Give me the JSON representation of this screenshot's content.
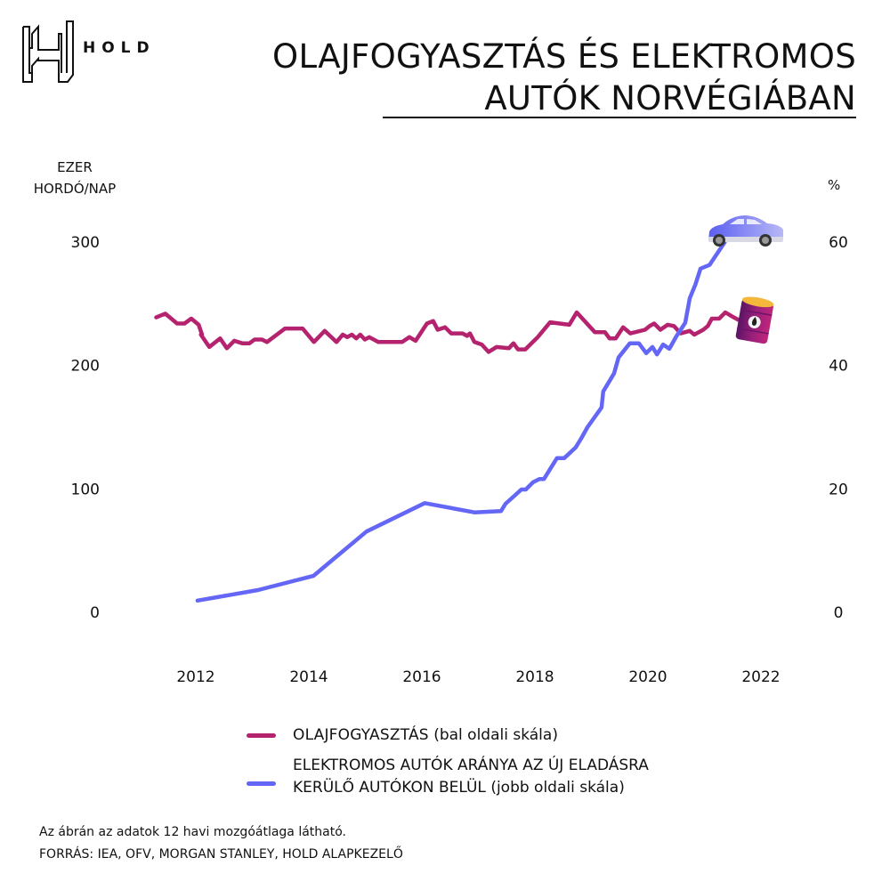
{
  "brand": {
    "name": "HOLD",
    "logo_icon": "hold-h-logo-icon"
  },
  "header": {
    "title_line1": "OLAJFOGYASZTÁS ÉS ELEKTROMOS",
    "title_line2": "AUTÓK NORVÉGIÁBAN"
  },
  "axes": {
    "left_unit_line1": "EZER",
    "left_unit_line2": "HORDÓ/NAP",
    "right_unit": "%"
  },
  "legend": {
    "oil_label": "OLAJFOGYASZTÁS",
    "oil_note": "(bal oldali skála)",
    "ev_label_line1": "ELEKTROMOS AUTÓK ARÁNYA AZ ÚJ ELADÁSRA",
    "ev_label_line2": "KERÜLŐ AUTÓKON BELÜL",
    "ev_note": "(jobb oldali skála)"
  },
  "footer": {
    "note": "Az ábrán az adatok 12 havi mozgóátlaga látható.",
    "source": "FORRÁS: IEA, OFV, MORGAN STANLEY, HOLD ALAPKEZELŐ"
  },
  "colors": {
    "oil": "#b5236f",
    "ev": "#6466f5",
    "text": "#111111"
  },
  "icons": {
    "ev_end_marker": "car-icon",
    "oil_end_marker": "oil-barrel-icon"
  },
  "chart_data": {
    "type": "line",
    "title": "OLAJFOGYASZTÁS ÉS ELEKTROMOS AUTÓK NORVÉGIÁBAN",
    "xlabel": "",
    "ylabel_left": "EZER HORDÓ/NAP",
    "ylabel_right": "%",
    "xlim": [
      2011.1,
      2022.6
    ],
    "ylim_left": [
      0,
      300
    ],
    "ylim_right": [
      0,
      60
    ],
    "xticks": [
      2012,
      2014,
      2016,
      2018,
      2020,
      2022
    ],
    "yticks_left": [
      0,
      100,
      200,
      300
    ],
    "yticks_right": [
      0,
      20,
      40,
      60
    ],
    "grid": false,
    "legend_position": "bottom",
    "series": [
      {
        "name": "OLAJFOGYASZTÁS (bal oldali skála)",
        "axis": "left",
        "color": "#b5236f",
        "x": [
          2011.3,
          2011.46,
          2011.67,
          2011.8,
          2011.92,
          2012.05,
          2012.11,
          2012.09,
          2012.24,
          2012.43,
          2012.55,
          2012.68,
          2012.82,
          2012.95,
          2013.04,
          2013.17,
          2013.26,
          2013.58,
          2013.73,
          2013.89,
          2014.09,
          2014.28,
          2014.49,
          2014.6,
          2014.68,
          2014.76,
          2014.84,
          2014.91,
          2014.99,
          2015.07,
          2015.23,
          2015.65,
          2015.78,
          2015.89,
          2016.09,
          2016.2,
          2016.28,
          2016.41,
          2016.52,
          2016.72,
          2016.8,
          2016.85,
          2016.93,
          2017.06,
          2017.12,
          2017.18,
          2017.32,
          2017.54,
          2017.62,
          2017.7,
          2017.83,
          2018.05,
          2018.27,
          2018.61,
          2018.74,
          2019.06,
          2019.24,
          2019.32,
          2019.43,
          2019.56,
          2019.69,
          2019.95,
          2020.03,
          2020.11,
          2020.22,
          2020.35,
          2020.46,
          2020.58,
          2020.74,
          2020.82,
          2020.98,
          2021.06,
          2021.13,
          2021.26,
          2021.37,
          2021.48,
          2021.6
        ],
        "values": [
          239,
          242,
          234,
          234,
          238,
          233,
          225,
          225,
          215,
          222,
          214,
          220,
          218,
          218,
          221,
          221,
          219,
          230,
          230,
          230,
          219,
          228,
          219,
          225,
          223,
          225,
          222,
          225,
          221,
          223,
          219,
          219,
          223,
          220,
          234,
          236,
          229,
          231,
          226,
          226,
          224,
          226,
          219,
          217,
          214,
          211,
          215,
          214,
          218,
          213,
          213,
          223,
          235,
          233,
          243,
          227,
          227,
          222,
          222,
          231,
          226,
          229,
          232,
          234,
          229,
          233,
          232,
          226,
          228,
          225,
          229,
          232,
          238,
          238,
          243,
          240,
          237
        ]
      },
      {
        "name": "ELEKTROMOS AUTÓK ARÁNYA AZ ÚJ ELADÁSRA KERÜLŐ AUTÓKON BELÜL (jobb oldali skála)",
        "axis": "right",
        "color": "#6466f5",
        "x": [
          2012.03,
          2013.1,
          2014.08,
          2015.02,
          2016.05,
          2016.93,
          2017.4,
          2017.48,
          2017.64,
          2017.76,
          2017.84,
          2017.97,
          2018.08,
          2018.16,
          2018.39,
          2018.52,
          2018.72,
          2018.82,
          2018.93,
          2019.18,
          2019.21,
          2019.4,
          2019.48,
          2019.68,
          2019.84,
          2019.97,
          2020.08,
          2020.16,
          2020.27,
          2020.38,
          2020.5,
          2020.66,
          2020.74,
          2020.84,
          2020.93,
          2021.09,
          2021.36
        ],
        "values": [
          1.9,
          3.6,
          5.9,
          13.1,
          17.7,
          16.2,
          16.4,
          17.6,
          18.9,
          19.9,
          19.9,
          21.1,
          21.6,
          21.6,
          25.0,
          25.0,
          26.7,
          28.2,
          30.0,
          33.2,
          35.8,
          38.7,
          41.3,
          43.6,
          43.6,
          42.0,
          43.0,
          41.8,
          43.4,
          42.7,
          44.7,
          46.9,
          50.9,
          53.1,
          55.7,
          56.3,
          60.0
        ]
      }
    ]
  }
}
